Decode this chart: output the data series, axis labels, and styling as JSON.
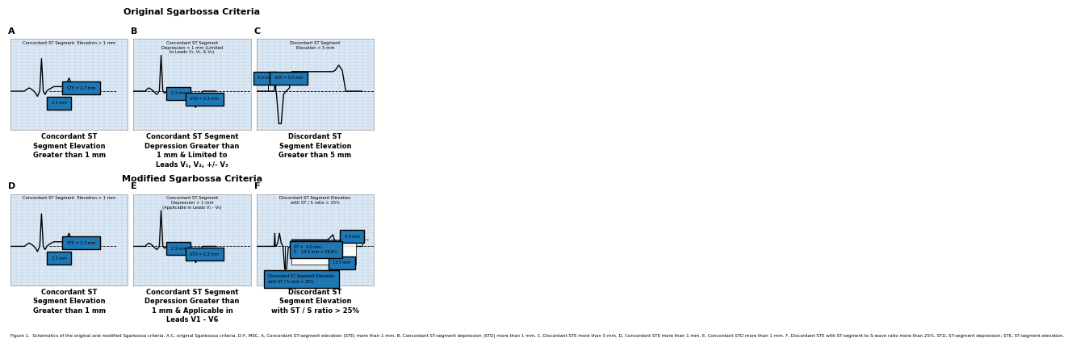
{
  "title_original": "Original Sgarbossa Criteria",
  "title_modified": "Modified Sgarbossa Criteria",
  "panel_bg": "#dce8f4",
  "grid_color": "#b5cfe3",
  "figure_caption": "Figure 1.  Schematics of the original and modified Sgarbossa criteria. A-C, original Sgarbossa criteria. D-F, MSC. A, Concordant ST-segment elevation (STE) more than 1 mm. B, Concordant ST-segment depression (STD) more than 1 mm. C, Discordant STE more than 5 mm. D, Concordant STE more than 1 mm. E, Concordant STD more than 1 mm. F, Discordant STE with ST-segment to S-wave ratio more than 25%. STD, ST-segment depression; STE, ST-segment elevation.",
  "captions": {
    "A": "Concordant ST\nSegment Elevation\nGreater than 1 mm",
    "B": "Concordant ST Segment\nDepression Greater than\n1 mm & Limited to\nLeads V₁, V₂, +/- V₃",
    "C": "Discordant ST\nSegment Elevation\nGreater than 5 mm",
    "D": "Concordant ST\nSegment Elevation\nGreater than 1 mm",
    "E": "Concordant ST Segment\nDepression Greater than\n1 mm & Applicable in\nLeads V1 - V6",
    "F": "Discordant ST\nSegment Elevation\nwith ST / S ratio > 25%"
  },
  "inner_labels": {
    "A": "Concordant ST Segment  Elevation > 1 mm",
    "B": "Concordant ST Segment\nDepression > 1 mm (Limited\nto Leads V₁, V₂, & V₃)",
    "C": "Discordant ST Segment\nElevation > 5 mm",
    "D": "Concordant ST Segment  Elevation > 1 mm",
    "E": "Concordant ST Segment\nDepression > 1 mm\n(Applicable in Leads V₁ - V₆)",
    "F": "Discordant ST Segment Elevation\nwith ST / S ratio > 25%"
  }
}
